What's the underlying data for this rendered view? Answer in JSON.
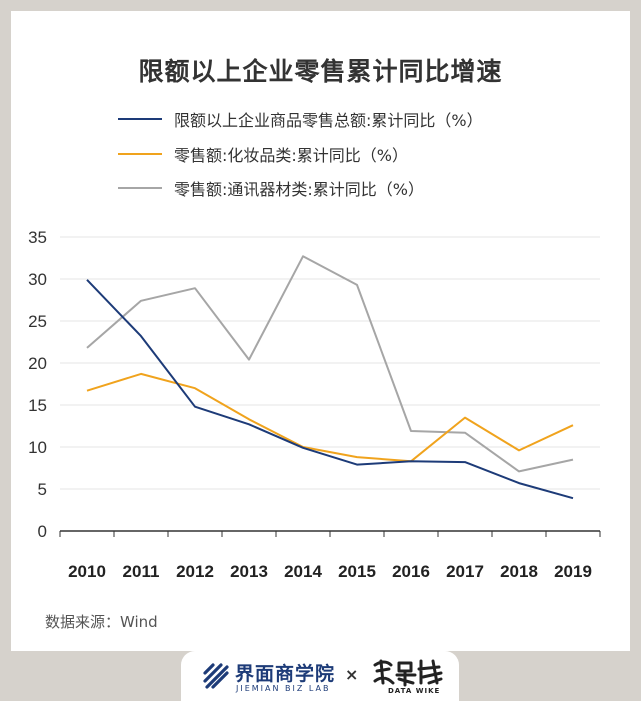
{
  "source": "数据来源：Wind",
  "colors": {
    "background": "#d6d2cc",
    "card": "#ffffff",
    "total": "#1d3b78",
    "cosmetics": "#f0a31d",
    "telecom": "#a6a6a6",
    "grid": "#e4e4e4",
    "axis": "#333333"
  },
  "footer": {
    "brand_name": "界面商学院",
    "brand_sub": "JIEMIAN BIZ LAB",
    "cross": "×",
    "partner_sub": "DATA WIKE"
  },
  "chart_data": {
    "type": "line",
    "title": "限额以上企业零售累计同比增速",
    "xlabel": "",
    "ylabel": "",
    "x": [
      "2010",
      "2011",
      "2012",
      "2013",
      "2014",
      "2015",
      "2016",
      "2017",
      "2018",
      "2019"
    ],
    "yticks": [
      "0",
      "5",
      "10",
      "15",
      "20",
      "25",
      "30",
      "35"
    ],
    "ylim": [
      0,
      35
    ],
    "grid": true,
    "legend_position": "top-left",
    "series": [
      {
        "name": "限额以上企业商品零售总额:累计同比（%）",
        "color": "#1d3b78",
        "values": [
          29.9,
          23.2,
          14.8,
          12.7,
          9.9,
          7.9,
          8.3,
          8.2,
          5.7,
          3.9
        ]
      },
      {
        "name": "零售额:化妆品类:累计同比（%）",
        "color": "#f0a31d",
        "values": [
          16.7,
          18.7,
          17.0,
          13.3,
          10.0,
          8.8,
          8.3,
          13.5,
          9.6,
          12.6
        ]
      },
      {
        "name": "零售额:通讯器材类:累计同比（%）",
        "color": "#a6a6a6",
        "values": [
          21.8,
          27.4,
          28.9,
          20.4,
          32.7,
          29.3,
          11.9,
          11.7,
          7.1,
          8.5
        ]
      }
    ]
  }
}
